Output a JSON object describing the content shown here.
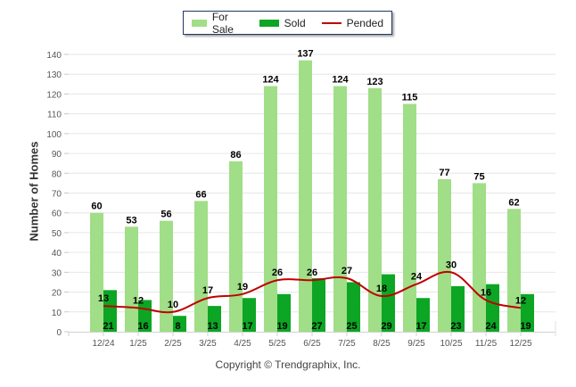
{
  "chart_data": {
    "type": "bar",
    "title": "",
    "xlabel": "",
    "ylabel": "Number of Homes",
    "ylim": [
      0,
      140
    ],
    "yticks": [
      0,
      10,
      20,
      30,
      40,
      50,
      60,
      70,
      80,
      90,
      100,
      110,
      120,
      130,
      140
    ],
    "grid": true,
    "legend_position": "top-center",
    "categories": [
      "12/24",
      "1/25",
      "2/25",
      "3/25",
      "4/25",
      "5/25",
      "6/25",
      "7/25",
      "8/25",
      "9/25",
      "10/25",
      "11/25",
      "12/25"
    ],
    "series": [
      {
        "name": "For Sale",
        "kind": "bar",
        "color": "#a0de87",
        "values": [
          60,
          53,
          56,
          66,
          86,
          124,
          137,
          124,
          123,
          115,
          77,
          75,
          62
        ]
      },
      {
        "name": "Sold",
        "kind": "bar",
        "color": "#0ca624",
        "values": [
          21,
          16,
          8,
          13,
          17,
          19,
          27,
          25,
          29,
          17,
          23,
          24,
          19
        ]
      },
      {
        "name": "Pended",
        "kind": "line",
        "color": "#c00000",
        "values": [
          13,
          12,
          10,
          17,
          19,
          26,
          26,
          27,
          18,
          24,
          30,
          16,
          12
        ]
      }
    ]
  },
  "legend": {
    "for_sale": "For Sale",
    "sold": "Sold",
    "pended": "Pended"
  },
  "footer": {
    "copyright": "Copyright © Trendgraphix, Inc."
  }
}
